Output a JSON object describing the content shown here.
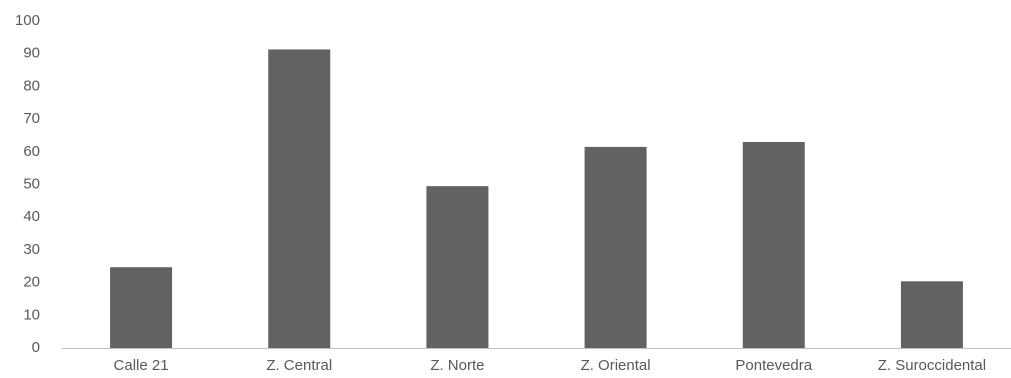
{
  "chart_data": {
    "type": "bar",
    "title": "",
    "xlabel": "",
    "ylabel": "",
    "categories": [
      "Calle 21",
      "Z. Central",
      "Z. Norte",
      "Z. Oriental",
      "Pontevedra",
      "Z. Suroccidental"
    ],
    "values": [
      24.7,
      91.3,
      49.5,
      61.5,
      63.0,
      20.4
    ],
    "ylim": [
      0,
      100
    ],
    "yticks": [
      0,
      10,
      20,
      30,
      40,
      50,
      60,
      70,
      80,
      90,
      100
    ],
    "grid": false,
    "legend": "none",
    "colors": {
      "bar": "#626262",
      "axis": "#bfbfbf",
      "text": "#595959"
    }
  }
}
